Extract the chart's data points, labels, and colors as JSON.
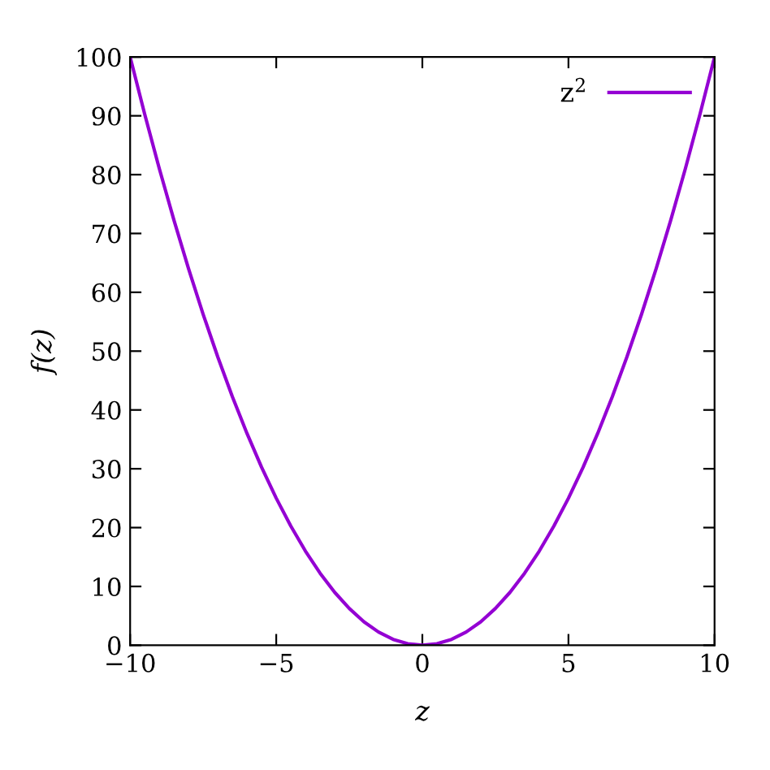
{
  "chart_data": {
    "type": "line",
    "xlabel": "z",
    "ylabel": "f(z)",
    "xlim": [
      -10,
      10
    ],
    "ylim": [
      0,
      100
    ],
    "xticks": [
      {
        "value": -10,
        "label": "−10"
      },
      {
        "value": -5,
        "label": "−5"
      },
      0,
      5,
      10
    ],
    "yticks": [
      0,
      10,
      20,
      30,
      40,
      50,
      60,
      70,
      80,
      90,
      100
    ],
    "grid": false,
    "legend": "top right",
    "marker": "none",
    "line_style": "solid",
    "series": [
      {
        "name": "z$^{2}$",
        "color": "#9400d3",
        "x": [
          -10,
          -9.5,
          -9,
          -8.5,
          -8,
          -7.5,
          -7,
          -6.5,
          -6,
          -5.5,
          -5,
          -4.5,
          -4,
          -3.5,
          -3,
          -2.5,
          -2,
          -1.5,
          -1,
          -0.5,
          0,
          0.5,
          1,
          1.5,
          2,
          2.5,
          3,
          3.5,
          4,
          4.5,
          5,
          5.5,
          6,
          6.5,
          7,
          7.5,
          8,
          8.5,
          9,
          9.5,
          10
        ],
        "values": [
          100,
          90.25,
          81,
          72.25,
          64,
          56.25,
          49,
          42.25,
          36,
          30.25,
          25,
          20.25,
          16,
          12.25,
          9,
          6.25,
          4,
          2.25,
          1,
          0.25,
          0,
          0.25,
          1,
          2.25,
          4,
          6.25,
          9,
          12.25,
          16,
          20.25,
          25,
          30.25,
          36,
          42.25,
          49,
          56.25,
          64,
          72.25,
          81,
          90.25,
          100
        ]
      }
    ]
  }
}
